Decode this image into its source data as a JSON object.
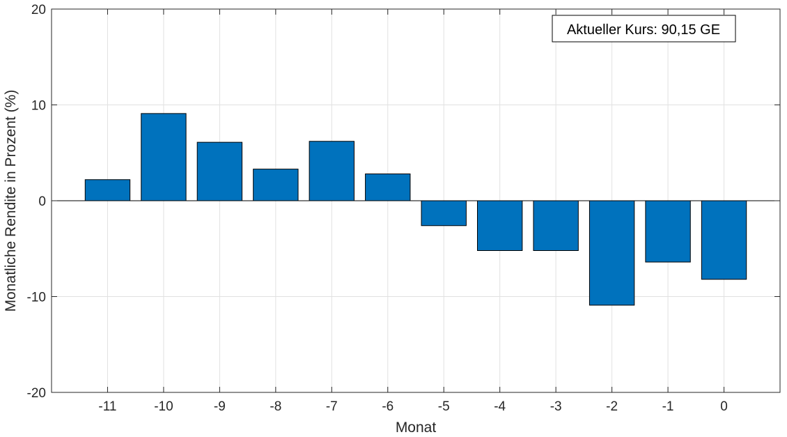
{
  "chart_data": {
    "type": "bar",
    "categories": [
      "-11",
      "-10",
      "-9",
      "-8",
      "-7",
      "-6",
      "-5",
      "-4",
      "-3",
      "-2",
      "-1",
      "0"
    ],
    "values": [
      2.2,
      9.1,
      6.1,
      3.3,
      6.2,
      2.8,
      -2.6,
      -5.2,
      -5.2,
      -10.9,
      -6.4,
      -8.2
    ],
    "xlabel": "Monat",
    "ylabel": "Monatliche Rendite in Prozent (%)",
    "ylim": [
      -20,
      20
    ],
    "yticks": [
      "-20",
      "-10",
      "0",
      "10",
      "20"
    ],
    "grid": true,
    "bar_color": "#0072BD",
    "annotation": "Aktueller Kurs: 90,15 GE"
  }
}
